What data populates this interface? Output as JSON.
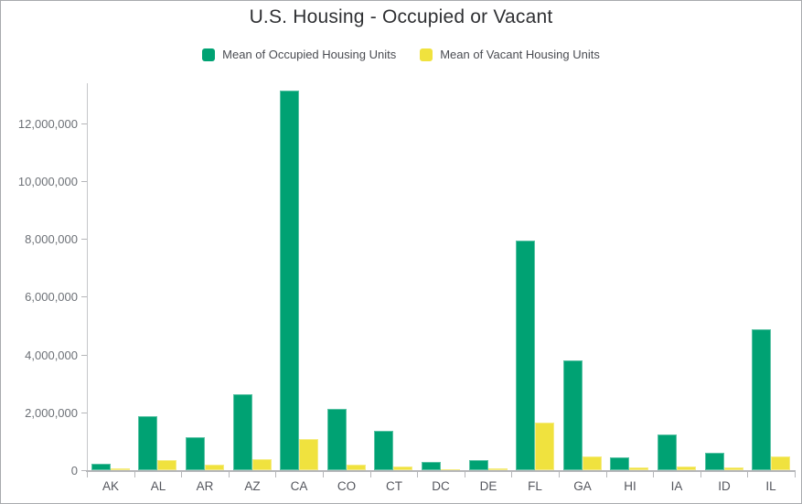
{
  "chart_data": {
    "type": "bar",
    "title": "U.S. Housing - Occupied or Vacant",
    "categories": [
      "AK",
      "AL",
      "AR",
      "AZ",
      "CA",
      "CO",
      "CT",
      "DC",
      "DE",
      "FL",
      "GA",
      "HI",
      "IA",
      "ID",
      "IL"
    ],
    "series": [
      {
        "name": "Mean of Occupied Housing Units",
        "color": "#00A273",
        "values": [
          222000,
          1860000,
          1135000,
          2615000,
          13130000,
          2110000,
          1355000,
          280000,
          350000,
          7935000,
          3810000,
          445000,
          1230000,
          600000,
          4880000
        ]
      },
      {
        "name": "Mean of Vacant Housing Units",
        "color": "#F0E23E",
        "values": [
          55000,
          350000,
          185000,
          380000,
          1070000,
          190000,
          120000,
          30000,
          63000,
          1640000,
          470000,
          90000,
          125000,
          85000,
          465000
        ]
      }
    ],
    "xlabel": "",
    "ylabel": "",
    "ylim": [
      0,
      13390000
    ],
    "yticks": [
      0,
      2000000,
      4000000,
      6000000,
      8000000,
      10000000,
      12000000
    ],
    "grid": false,
    "legend_position": "top"
  }
}
